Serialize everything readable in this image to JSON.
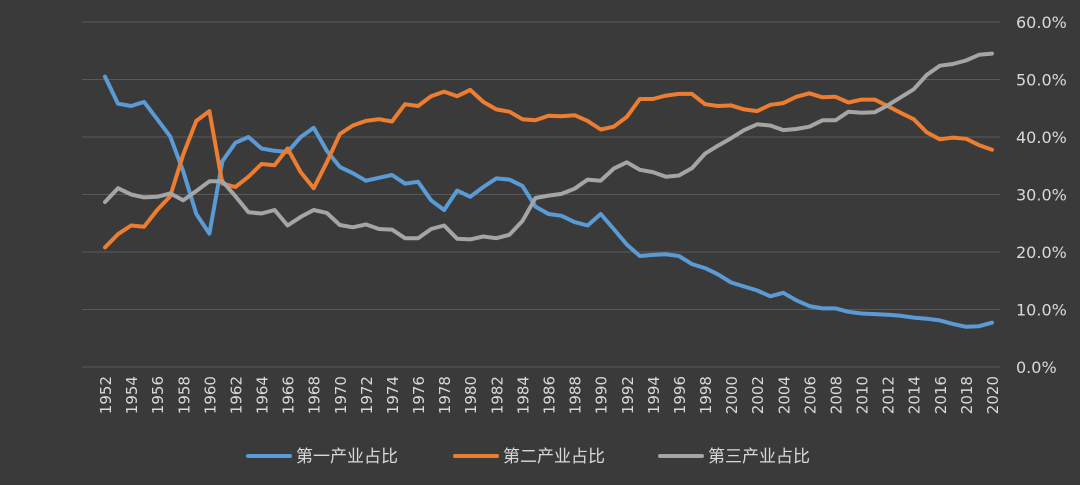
{
  "chart_data": {
    "type": "line",
    "title": "",
    "xlabel": "",
    "ylabel": "",
    "ylim": [
      0,
      60
    ],
    "y_ticks": [
      "0.0%",
      "10.0%",
      "20.0%",
      "30.0%",
      "40.0%",
      "50.0%",
      "60.0%"
    ],
    "y_axis_position": "right",
    "grid": true,
    "legend_position": "bottom",
    "x": [
      1952,
      1953,
      1954,
      1955,
      1956,
      1957,
      1958,
      1959,
      1960,
      1961,
      1962,
      1963,
      1964,
      1965,
      1966,
      1967,
      1968,
      1969,
      1970,
      1971,
      1972,
      1973,
      1974,
      1975,
      1976,
      1977,
      1978,
      1979,
      1980,
      1981,
      1982,
      1983,
      1984,
      1985,
      1986,
      1987,
      1988,
      1989,
      1990,
      1991,
      1992,
      1993,
      1994,
      1995,
      1996,
      1997,
      1998,
      1999,
      2000,
      2001,
      2002,
      2003,
      2004,
      2005,
      2006,
      2007,
      2008,
      2009,
      2010,
      2011,
      2012,
      2013,
      2014,
      2015,
      2016,
      2017,
      2018,
      2019,
      2020
    ],
    "x_tick_labels": [
      "1952",
      "1954",
      "1956",
      "1958",
      "1960",
      "1962",
      "1964",
      "1966",
      "1968",
      "1970",
      "1972",
      "1974",
      "1976",
      "1978",
      "1980",
      "1982",
      "1984",
      "1986",
      "1988",
      "1990",
      "1992",
      "1994",
      "1996",
      "1998",
      "2000",
      "2002",
      "2004",
      "2006",
      "2008",
      "2010",
      "2012",
      "2014",
      "2016",
      "2018",
      "2020"
    ],
    "series": [
      {
        "name": "第一产业占比",
        "color": "#5b9bd5",
        "values": [
          50.5,
          45.8,
          45.4,
          46.1,
          43.1,
          40.1,
          34.0,
          26.6,
          23.2,
          35.8,
          39.0,
          40.0,
          38.0,
          37.6,
          37.4,
          40.0,
          41.6,
          37.6,
          34.8,
          33.7,
          32.4,
          32.9,
          33.4,
          31.9,
          32.2,
          29.0,
          27.3,
          30.7,
          29.6,
          31.3,
          32.8,
          32.6,
          31.5,
          27.9,
          26.6,
          26.3,
          25.2,
          24.6,
          26.6,
          24.0,
          21.3,
          19.3,
          19.5,
          19.6,
          19.3,
          17.9,
          17.2,
          16.1,
          14.7,
          14.0,
          13.3,
          12.3,
          12.9,
          11.6,
          10.6,
          10.2,
          10.2,
          9.6,
          9.3,
          9.2,
          9.1,
          8.9,
          8.6,
          8.4,
          8.1,
          7.5,
          7.0,
          7.1,
          7.7
        ]
      },
      {
        "name": "第二产业占比",
        "color": "#ed7d31",
        "values": [
          20.8,
          23.1,
          24.6,
          24.4,
          27.3,
          29.7,
          37.0,
          42.8,
          44.5,
          31.9,
          31.3,
          33.1,
          35.3,
          35.1,
          38.0,
          33.9,
          31.1,
          35.6,
          40.5,
          42.0,
          42.8,
          43.1,
          42.7,
          45.7,
          45.4,
          47.1,
          47.9,
          47.1,
          48.2,
          46.1,
          44.8,
          44.4,
          43.1,
          42.9,
          43.7,
          43.6,
          43.8,
          42.8,
          41.3,
          41.8,
          43.5,
          46.6,
          46.6,
          47.2,
          47.5,
          47.5,
          45.7,
          45.4,
          45.5,
          44.8,
          44.5,
          45.6,
          45.9,
          47.0,
          47.6,
          46.9,
          47.0,
          46.0,
          46.5,
          46.5,
          45.4,
          44.2,
          43.1,
          40.8,
          39.6,
          39.9,
          39.7,
          38.6,
          37.8
        ]
      },
      {
        "name": "第三产业占比",
        "color": "#a5a5a5",
        "values": [
          28.7,
          31.1,
          30.0,
          29.5,
          29.6,
          30.2,
          29.0,
          30.6,
          32.3,
          32.3,
          29.7,
          26.9,
          26.7,
          27.3,
          24.6,
          26.1,
          27.3,
          26.8,
          24.7,
          24.3,
          24.8,
          24.0,
          23.9,
          22.4,
          22.4,
          24.0,
          24.6,
          22.3,
          22.2,
          22.7,
          22.4,
          23.0,
          25.4,
          29.4,
          29.8,
          30.1,
          31.0,
          32.6,
          32.4,
          34.5,
          35.6,
          34.3,
          33.9,
          33.1,
          33.3,
          34.6,
          37.1,
          38.5,
          39.8,
          41.2,
          42.2,
          42.0,
          41.2,
          41.4,
          41.8,
          42.9,
          42.9,
          44.4,
          44.2,
          44.3,
          45.5,
          46.9,
          48.3,
          50.8,
          52.4,
          52.7,
          53.3,
          54.3,
          54.5
        ]
      }
    ]
  }
}
